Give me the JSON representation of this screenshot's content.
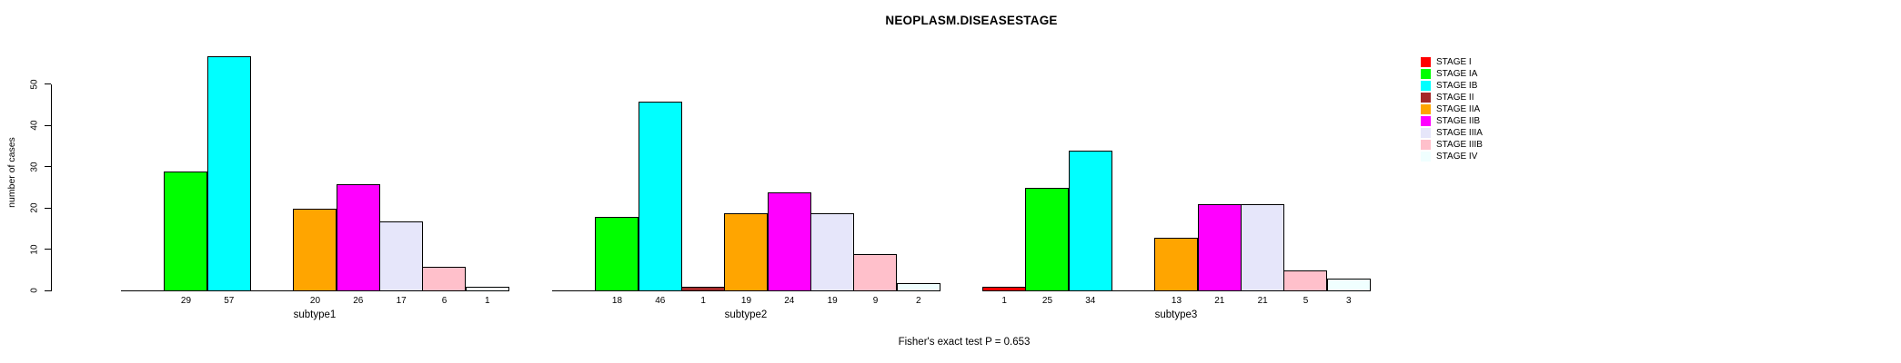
{
  "title": "NEOPLASM.DISEASESTAGE",
  "footnote": "Fisher's exact test P = 0.653",
  "y_axis": {
    "label": "number of cases",
    "ticks": [
      0,
      10,
      20,
      30,
      40,
      50
    ]
  },
  "chart_data": {
    "type": "bar",
    "title": "NEOPLASM.DISEASESTAGE",
    "xlabel": "",
    "ylabel": "number of cases",
    "ylim": [
      0,
      50
    ],
    "grid": false,
    "legend_position": "right",
    "bar_value_labels_shown": true,
    "zero_value_bars_hidden": true,
    "categories": [
      "subtype1",
      "subtype2",
      "subtype3"
    ],
    "series": [
      {
        "name": "STAGE I",
        "color": "#FF0000",
        "values": [
          0,
          0,
          1
        ]
      },
      {
        "name": "STAGE IA",
        "color": "#00FF00",
        "values": [
          29,
          18,
          25
        ]
      },
      {
        "name": "STAGE IB",
        "color": "#00FFFF",
        "values": [
          57,
          46,
          34
        ]
      },
      {
        "name": "STAGE II",
        "color": "#A52A2A",
        "values": [
          0,
          1,
          0
        ]
      },
      {
        "name": "STAGE IIA",
        "color": "#FFA500",
        "values": [
          20,
          19,
          13
        ]
      },
      {
        "name": "STAGE IIB",
        "color": "#FF00FF",
        "values": [
          26,
          24,
          21
        ]
      },
      {
        "name": "STAGE IIIA",
        "color": "#E6E6FA",
        "values": [
          17,
          19,
          21
        ]
      },
      {
        "name": "STAGE IIIB",
        "color": "#FFC0CB",
        "values": [
          6,
          9,
          5
        ]
      },
      {
        "name": "STAGE IV",
        "color": "#F0FFFF",
        "values": [
          1,
          2,
          3
        ]
      }
    ]
  }
}
